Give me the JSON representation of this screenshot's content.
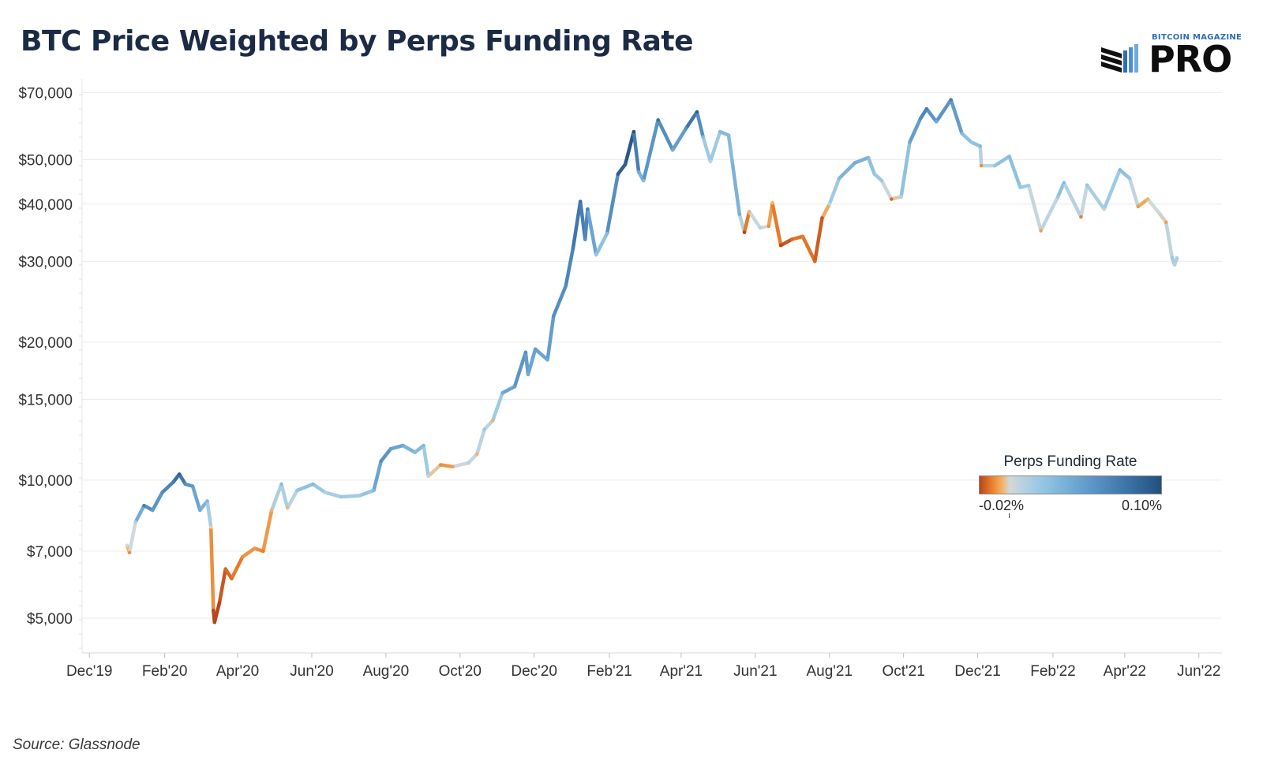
{
  "title": "BTC Price Weighted by Perps Funding Rate",
  "logo": {
    "small_text": "BITCOIN MAGAZINE",
    "big_text": "PRO"
  },
  "source": "Source: Glassnode",
  "legend": {
    "title": "Perps Funding Rate",
    "min_label": "-0.02%",
    "max_label": "0.10%",
    "colors": [
      "#b8441d",
      "#e97f2a",
      "#f2b36a",
      "#cfd9dc",
      "#98c8e4",
      "#6aa4d2",
      "#3f77ab",
      "#23507d"
    ]
  },
  "chart_data": {
    "type": "line",
    "title": "BTC Price Weighted by Perps Funding Rate",
    "y_scale": "log",
    "ylim": [
      4200,
      75000
    ],
    "yticks": [
      {
        "value": 70000,
        "label": "$70,000"
      },
      {
        "value": 50000,
        "label": "$50,000"
      },
      {
        "value": 40000,
        "label": "$40,000"
      },
      {
        "value": 30000,
        "label": "$30,000"
      },
      {
        "value": 20000,
        "label": "$20,000"
      },
      {
        "value": 15000,
        "label": "$15,000"
      },
      {
        "value": 10000,
        "label": "$10,000"
      },
      {
        "value": 7000,
        "label": "$7,000"
      },
      {
        "value": 5000,
        "label": "$5,000"
      }
    ],
    "xlim": [
      "2019-11-25",
      "2022-06-20"
    ],
    "xticks": [
      {
        "date": "2019-12-01",
        "label": "Dec'19"
      },
      {
        "date": "2020-02-01",
        "label": "Feb'20"
      },
      {
        "date": "2020-04-01",
        "label": "Apr'20"
      },
      {
        "date": "2020-06-01",
        "label": "Jun'20"
      },
      {
        "date": "2020-08-01",
        "label": "Aug'20"
      },
      {
        "date": "2020-10-01",
        "label": "Oct'20"
      },
      {
        "date": "2020-12-01",
        "label": "Dec'20"
      },
      {
        "date": "2021-02-01",
        "label": "Feb'21"
      },
      {
        "date": "2021-04-01",
        "label": "Apr'21"
      },
      {
        "date": "2021-06-01",
        "label": "Jun'21"
      },
      {
        "date": "2021-08-01",
        "label": "Aug'21"
      },
      {
        "date": "2021-10-01",
        "label": "Oct'21"
      },
      {
        "date": "2021-12-01",
        "label": "Dec'21"
      },
      {
        "date": "2022-02-01",
        "label": "Feb'22"
      },
      {
        "date": "2022-04-01",
        "label": "Apr'22"
      },
      {
        "date": "2022-06-01",
        "label": "Jun'22"
      }
    ],
    "grid": true,
    "legend_position": "right-middle",
    "series": [
      {
        "color_scale": "funding rate -0.02% to 0.10%",
        "points": [
          {
            "x": "2020-01-01",
            "y": 7200,
            "rate": 0.0
          },
          {
            "x": "2020-01-03",
            "y": 6950,
            "rate": -0.01
          },
          {
            "x": "2020-01-08",
            "y": 8100,
            "rate": 0.01
          },
          {
            "x": "2020-01-15",
            "y": 8800,
            "rate": 0.07
          },
          {
            "x": "2020-01-22",
            "y": 8600,
            "rate": 0.05
          },
          {
            "x": "2020-01-30",
            "y": 9400,
            "rate": 0.06
          },
          {
            "x": "2020-02-08",
            "y": 9900,
            "rate": 0.07
          },
          {
            "x": "2020-02-13",
            "y": 10300,
            "rate": 0.09
          },
          {
            "x": "2020-02-18",
            "y": 9800,
            "rate": 0.06
          },
          {
            "x": "2020-02-24",
            "y": 9700,
            "rate": 0.05
          },
          {
            "x": "2020-03-01",
            "y": 8600,
            "rate": 0.04
          },
          {
            "x": "2020-03-07",
            "y": 9000,
            "rate": 0.03
          },
          {
            "x": "2020-03-10",
            "y": 7900,
            "rate": 0.0
          },
          {
            "x": "2020-03-12",
            "y": 5200,
            "rate": -0.02
          },
          {
            "x": "2020-03-13",
            "y": 4900,
            "rate": -0.02
          },
          {
            "x": "2020-03-17",
            "y": 5400,
            "rate": -0.02
          },
          {
            "x": "2020-03-22",
            "y": 6400,
            "rate": -0.015
          },
          {
            "x": "2020-03-27",
            "y": 6100,
            "rate": -0.015
          },
          {
            "x": "2020-04-05",
            "y": 6800,
            "rate": -0.01
          },
          {
            "x": "2020-04-15",
            "y": 7100,
            "rate": -0.008
          },
          {
            "x": "2020-04-22",
            "y": 7000,
            "rate": -0.012
          },
          {
            "x": "2020-04-29",
            "y": 8600,
            "rate": -0.005
          },
          {
            "x": "2020-05-07",
            "y": 9800,
            "rate": 0.03
          },
          {
            "x": "2020-05-12",
            "y": 8700,
            "rate": -0.005
          },
          {
            "x": "2020-05-20",
            "y": 9500,
            "rate": 0.02
          },
          {
            "x": "2020-06-02",
            "y": 9800,
            "rate": 0.03
          },
          {
            "x": "2020-06-12",
            "y": 9400,
            "rate": 0.01
          },
          {
            "x": "2020-06-25",
            "y": 9200,
            "rate": 0.02
          },
          {
            "x": "2020-07-10",
            "y": 9250,
            "rate": 0.015
          },
          {
            "x": "2020-07-22",
            "y": 9500,
            "rate": 0.03
          },
          {
            "x": "2020-07-28",
            "y": 11000,
            "rate": 0.06
          },
          {
            "x": "2020-08-05",
            "y": 11700,
            "rate": 0.05
          },
          {
            "x": "2020-08-15",
            "y": 11900,
            "rate": 0.04
          },
          {
            "x": "2020-08-25",
            "y": 11500,
            "rate": 0.03
          },
          {
            "x": "2020-09-01",
            "y": 11900,
            "rate": 0.03
          },
          {
            "x": "2020-09-05",
            "y": 10200,
            "rate": 0.005
          },
          {
            "x": "2020-09-15",
            "y": 10800,
            "rate": -0.01
          },
          {
            "x": "2020-09-25",
            "y": 10700,
            "rate": -0.008
          },
          {
            "x": "2020-10-08",
            "y": 10900,
            "rate": 0.01
          },
          {
            "x": "2020-10-15",
            "y": 11400,
            "rate": -0.005
          },
          {
            "x": "2020-10-21",
            "y": 12900,
            "rate": 0.02
          },
          {
            "x": "2020-10-28",
            "y": 13500,
            "rate": -0.005
          },
          {
            "x": "2020-11-05",
            "y": 15500,
            "rate": 0.04
          },
          {
            "x": "2020-11-15",
            "y": 16000,
            "rate": 0.05
          },
          {
            "x": "2020-11-24",
            "y": 19000,
            "rate": 0.06
          },
          {
            "x": "2020-11-26",
            "y": 17000,
            "rate": 0.04
          },
          {
            "x": "2020-12-02",
            "y": 19300,
            "rate": 0.05
          },
          {
            "x": "2020-12-12",
            "y": 18300,
            "rate": 0.04
          },
          {
            "x": "2020-12-17",
            "y": 22800,
            "rate": 0.06
          },
          {
            "x": "2020-12-27",
            "y": 26500,
            "rate": 0.06
          },
          {
            "x": "2021-01-02",
            "y": 32000,
            "rate": 0.07
          },
          {
            "x": "2021-01-08",
            "y": 40500,
            "rate": 0.08
          },
          {
            "x": "2021-01-12",
            "y": 33500,
            "rate": 0.06
          },
          {
            "x": "2021-01-14",
            "y": 39000,
            "rate": 0.07
          },
          {
            "x": "2021-01-21",
            "y": 31000,
            "rate": 0.02
          },
          {
            "x": "2021-01-30",
            "y": 34500,
            "rate": 0.03
          },
          {
            "x": "2021-02-08",
            "y": 46500,
            "rate": 0.09
          },
          {
            "x": "2021-02-14",
            "y": 48800,
            "rate": 0.09
          },
          {
            "x": "2021-02-21",
            "y": 57500,
            "rate": 0.1
          },
          {
            "x": "2021-02-25",
            "y": 47000,
            "rate": 0.04
          },
          {
            "x": "2021-03-01",
            "y": 45000,
            "rate": 0.03
          },
          {
            "x": "2021-03-13",
            "y": 61000,
            "rate": 0.08
          },
          {
            "x": "2021-03-25",
            "y": 52500,
            "rate": 0.04
          },
          {
            "x": "2021-04-05",
            "y": 58500,
            "rate": 0.06
          },
          {
            "x": "2021-04-14",
            "y": 63500,
            "rate": 0.09
          },
          {
            "x": "2021-04-19",
            "y": 56000,
            "rate": 0.03
          },
          {
            "x": "2021-04-25",
            "y": 49500,
            "rate": 0.005
          },
          {
            "x": "2021-05-03",
            "y": 57500,
            "rate": 0.03
          },
          {
            "x": "2021-05-10",
            "y": 56500,
            "rate": 0.03
          },
          {
            "x": "2021-05-13",
            "y": 49500,
            "rate": 0.03
          },
          {
            "x": "2021-05-19",
            "y": 38000,
            "rate": 0.04
          },
          {
            "x": "2021-05-23",
            "y": 34700,
            "rate": -0.02
          },
          {
            "x": "2021-05-27",
            "y": 38500,
            "rate": -0.005
          },
          {
            "x": "2021-06-05",
            "y": 35500,
            "rate": 0.01
          },
          {
            "x": "2021-06-12",
            "y": 35800,
            "rate": -0.01
          },
          {
            "x": "2021-06-15",
            "y": 40200,
            "rate": -0.005
          },
          {
            "x": "2021-06-22",
            "y": 32500,
            "rate": -0.02
          },
          {
            "x": "2021-07-01",
            "y": 33500,
            "rate": -0.015
          },
          {
            "x": "2021-07-10",
            "y": 34000,
            "rate": -0.012
          },
          {
            "x": "2021-07-20",
            "y": 30000,
            "rate": -0.015
          },
          {
            "x": "2021-07-26",
            "y": 37300,
            "rate": -0.018
          },
          {
            "x": "2021-08-01",
            "y": 40000,
            "rate": 0.005
          },
          {
            "x": "2021-08-09",
            "y": 45500,
            "rate": 0.03
          },
          {
            "x": "2021-08-22",
            "y": 49200,
            "rate": 0.04
          },
          {
            "x": "2021-09-02",
            "y": 50500,
            "rate": 0.03
          },
          {
            "x": "2021-09-07",
            "y": 46500,
            "rate": 0.02
          },
          {
            "x": "2021-09-13",
            "y": 45000,
            "rate": 0.02
          },
          {
            "x": "2021-09-21",
            "y": 41000,
            "rate": -0.015
          },
          {
            "x": "2021-09-29",
            "y": 41500,
            "rate": 0.01
          },
          {
            "x": "2021-10-06",
            "y": 54500,
            "rate": 0.04
          },
          {
            "x": "2021-10-15",
            "y": 61500,
            "rate": 0.06
          },
          {
            "x": "2021-10-20",
            "y": 64500,
            "rate": 0.07
          },
          {
            "x": "2021-10-28",
            "y": 60500,
            "rate": 0.04
          },
          {
            "x": "2021-11-09",
            "y": 67500,
            "rate": 0.07
          },
          {
            "x": "2021-11-18",
            "y": 57000,
            "rate": 0.03
          },
          {
            "x": "2021-11-26",
            "y": 54500,
            "rate": 0.02
          },
          {
            "x": "2021-12-03",
            "y": 53500,
            "rate": 0.03
          },
          {
            "x": "2021-12-04",
            "y": 48500,
            "rate": -0.01
          },
          {
            "x": "2021-12-15",
            "y": 48500,
            "rate": 0.02
          },
          {
            "x": "2021-12-27",
            "y": 50800,
            "rate": 0.03
          },
          {
            "x": "2022-01-05",
            "y": 43500,
            "rate": 0.02
          },
          {
            "x": "2022-01-12",
            "y": 43900,
            "rate": 0.015
          },
          {
            "x": "2022-01-22",
            "y": 35000,
            "rate": -0.008
          },
          {
            "x": "2022-02-05",
            "y": 41500,
            "rate": 0.02
          },
          {
            "x": "2022-02-10",
            "y": 44500,
            "rate": 0.03
          },
          {
            "x": "2022-02-24",
            "y": 37500,
            "rate": -0.012
          },
          {
            "x": "2022-03-01",
            "y": 44000,
            "rate": 0.02
          },
          {
            "x": "2022-03-15",
            "y": 39000,
            "rate": 0.005
          },
          {
            "x": "2022-03-28",
            "y": 47500,
            "rate": 0.03
          },
          {
            "x": "2022-04-05",
            "y": 45500,
            "rate": 0.02
          },
          {
            "x": "2022-04-12",
            "y": 39500,
            "rate": -0.008
          },
          {
            "x": "2022-04-20",
            "y": 41000,
            "rate": -0.005
          },
          {
            "x": "2022-04-30",
            "y": 38000,
            "rate": 0.005
          },
          {
            "x": "2022-05-05",
            "y": 36500,
            "rate": -0.008
          },
          {
            "x": "2022-05-10",
            "y": 30500,
            "rate": 0.02
          },
          {
            "x": "2022-05-12",
            "y": 29500,
            "rate": 0.01
          },
          {
            "x": "2022-05-14",
            "y": 30500,
            "rate": 0.015
          }
        ]
      }
    ]
  }
}
